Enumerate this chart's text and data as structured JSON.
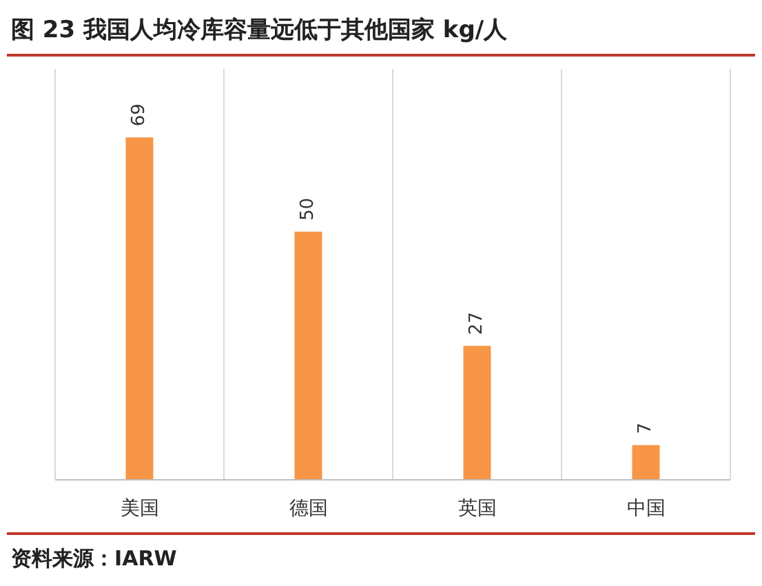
{
  "chart_data": {
    "type": "bar",
    "title": "图 23  我国人均冷库容量远低于其他国家 kg/人",
    "categories": [
      "美国",
      "德国",
      "英国",
      "中国"
    ],
    "values": [
      69,
      50,
      27,
      7
    ],
    "color": "#f79646",
    "data_labels": true,
    "grid": "x",
    "annotations": [
      "资料来源：IARW"
    ]
  }
}
